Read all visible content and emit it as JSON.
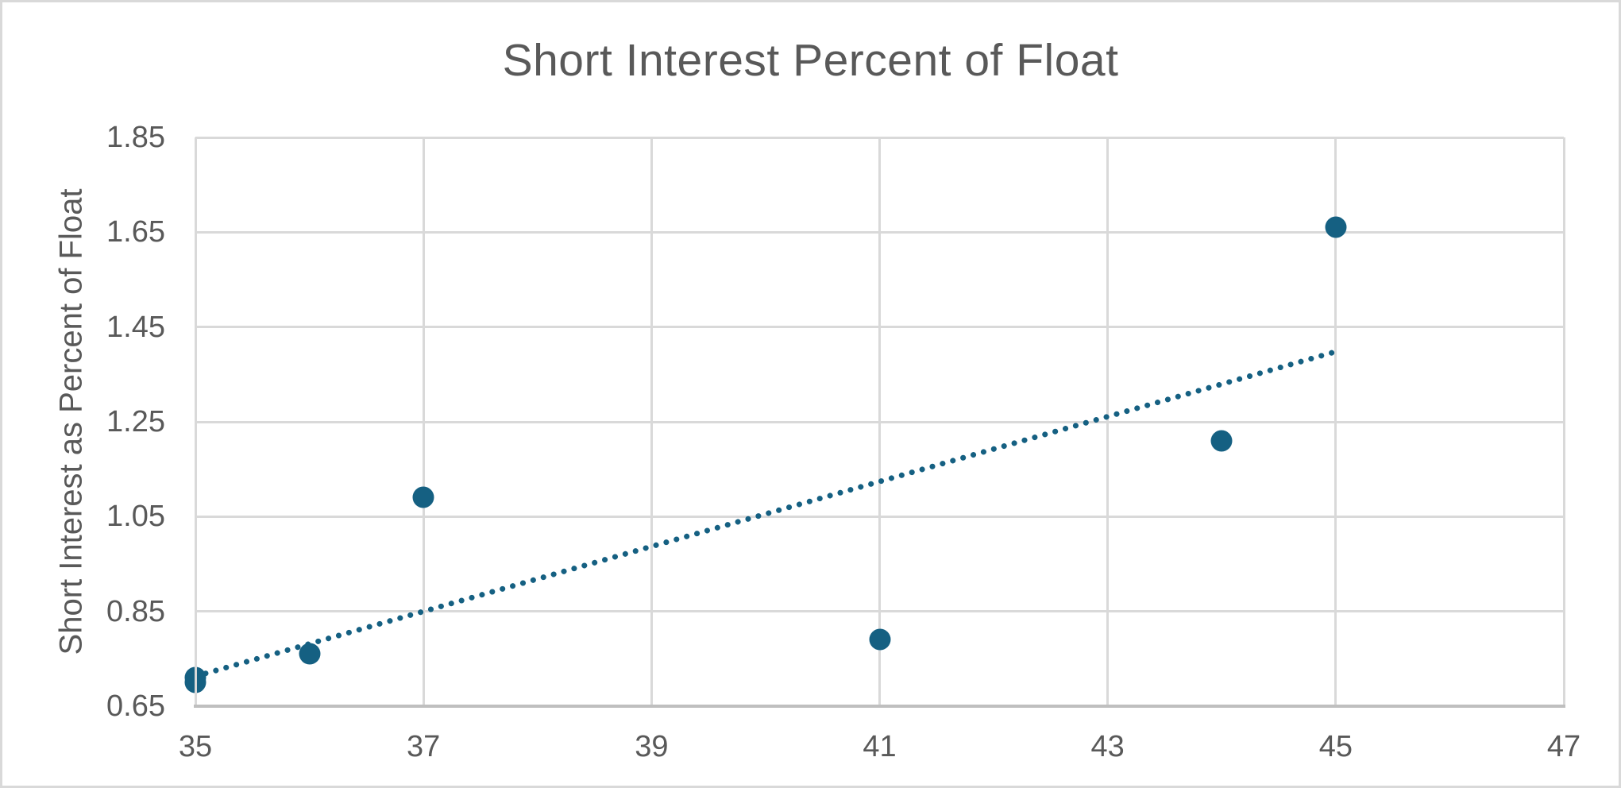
{
  "chart_data": {
    "type": "scatter",
    "title": "Short Interest Percent of Float",
    "xlabel": "",
    "ylabel": "Short Interest as Percent of Float",
    "xlim": [
      35,
      47
    ],
    "ylim": [
      0.65,
      1.85
    ],
    "x_ticks": [
      35,
      37,
      39,
      41,
      43,
      45,
      47
    ],
    "x_tick_labels": [
      "35",
      "37",
      "39",
      "41",
      "43",
      "45",
      "47"
    ],
    "y_ticks": [
      0.65,
      0.85,
      1.05,
      1.25,
      1.45,
      1.65,
      1.85
    ],
    "y_tick_labels": [
      "0.65",
      "0.85",
      "1.05",
      "1.25",
      "1.45",
      "1.65",
      "1.85"
    ],
    "grid": true,
    "legend": false,
    "points": [
      {
        "x": 35,
        "y": 0.71
      },
      {
        "x": 35,
        "y": 0.7
      },
      {
        "x": 36,
        "y": 0.76
      },
      {
        "x": 37,
        "y": 1.09
      },
      {
        "x": 41,
        "y": 0.79
      },
      {
        "x": 44,
        "y": 1.21
      },
      {
        "x": 45,
        "y": 1.66
      }
    ],
    "trendline": {
      "style": "dotted",
      "x1": 35,
      "y1": 0.713,
      "x2": 45,
      "y2": 1.398
    },
    "colors": {
      "marker": "#156082",
      "trendline": "#156082",
      "gridline": "#D9D9D9",
      "axis_line": "#BFBFBF",
      "text": "#595959",
      "chart_border": "#D9D9D9",
      "background": "#FFFFFF"
    }
  }
}
